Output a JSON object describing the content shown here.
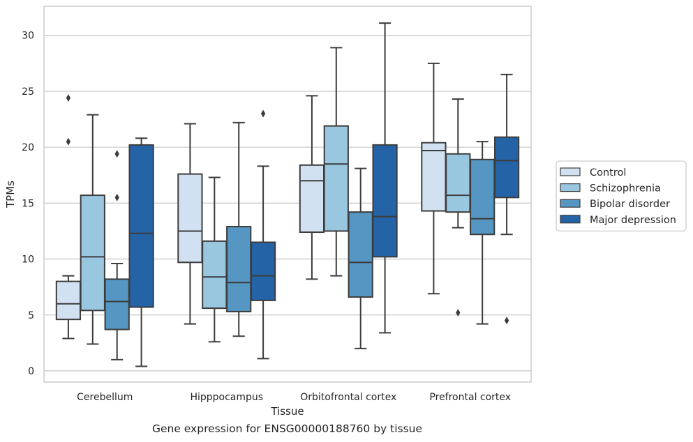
{
  "caption": "Gene expression for ENSG00000188760 by tissue",
  "chart_data": {
    "type": "box",
    "title": "",
    "xlabel": "Tissue",
    "ylabel": "TPMs",
    "ylim": [
      -1,
      32.6
    ],
    "yticks": [
      0,
      5,
      10,
      15,
      20,
      25,
      30
    ],
    "grid": "horizontal",
    "legend_position": "right",
    "categories": [
      "Cerebellum",
      "Hipppocampus",
      "Orbitofrontal cortex",
      "Prefrontal cortex"
    ],
    "series": [
      {
        "name": "Control",
        "color": "#d1e1f1",
        "boxes": [
          {
            "whislo": 2.9,
            "q1": 4.6,
            "med": 6.0,
            "q3": 8.0,
            "whishi": 8.5,
            "fliers": []
          },
          {
            "whislo": 4.2,
            "q1": 9.7,
            "med": 12.5,
            "q3": 17.6,
            "whishi": 22.1,
            "fliers": []
          },
          {
            "whislo": 8.2,
            "q1": 12.4,
            "med": 17.0,
            "q3": 18.4,
            "whishi": 24.6,
            "fliers": []
          },
          {
            "whislo": 6.9,
            "q1": 14.3,
            "med": 19.7,
            "q3": 20.4,
            "whishi": 27.5,
            "fliers": []
          }
        ]
      },
      {
        "name": "Schizophrenia",
        "color": "#9ac7e0",
        "boxes": [
          {
            "whislo": 2.4,
            "q1": 5.4,
            "med": 10.2,
            "q3": 15.7,
            "whishi": 22.9,
            "fliers": []
          },
          {
            "whislo": 2.6,
            "q1": 5.6,
            "med": 8.4,
            "q3": 11.6,
            "whishi": 17.3,
            "fliers": []
          },
          {
            "whislo": 8.5,
            "q1": 12.5,
            "med": 18.5,
            "q3": 21.9,
            "whishi": 28.9,
            "fliers": []
          },
          {
            "whislo": 12.8,
            "q1": 14.2,
            "med": 15.7,
            "q3": 19.4,
            "whishi": 24.3,
            "fliers": [
              5.2
            ]
          }
        ]
      },
      {
        "name": "Bipolar disorder",
        "color": "#5596c3",
        "boxes": [
          {
            "whislo": 1.0,
            "q1": 3.7,
            "med": 6.2,
            "q3": 8.2,
            "whishi": 9.6,
            "fliers": [
              15.5,
              19.4
            ]
          },
          {
            "whislo": 3.1,
            "q1": 5.3,
            "med": 7.9,
            "q3": 12.9,
            "whishi": 22.2,
            "fliers": []
          },
          {
            "whislo": 2.0,
            "q1": 6.6,
            "med": 9.7,
            "q3": 14.2,
            "whishi": 18.1,
            "fliers": []
          },
          {
            "whislo": 4.2,
            "q1": 12.2,
            "med": 13.6,
            "q3": 18.9,
            "whishi": 20.5,
            "fliers": []
          }
        ]
      },
      {
        "name": "Major depression",
        "color": "#2464a6",
        "boxes": [
          {
            "whislo": 0.4,
            "q1": 5.7,
            "med": 12.3,
            "q3": 20.2,
            "whishi": 20.8,
            "fliers": []
          },
          {
            "whislo": 1.1,
            "q1": 6.3,
            "med": 8.5,
            "q3": 11.5,
            "whishi": 18.3,
            "fliers": [
              23.0
            ]
          },
          {
            "whislo": 3.4,
            "q1": 10.2,
            "med": 13.8,
            "q3": 20.2,
            "whishi": 31.1,
            "fliers": []
          },
          {
            "whislo": 12.2,
            "q1": 15.5,
            "med": 18.8,
            "q3": 20.9,
            "whishi": 26.5,
            "fliers": [
              4.5
            ]
          }
        ]
      }
    ],
    "extra_fliers": [
      {
        "series": 0,
        "category": 0,
        "values": [
          24.4,
          20.5
        ]
      }
    ]
  }
}
